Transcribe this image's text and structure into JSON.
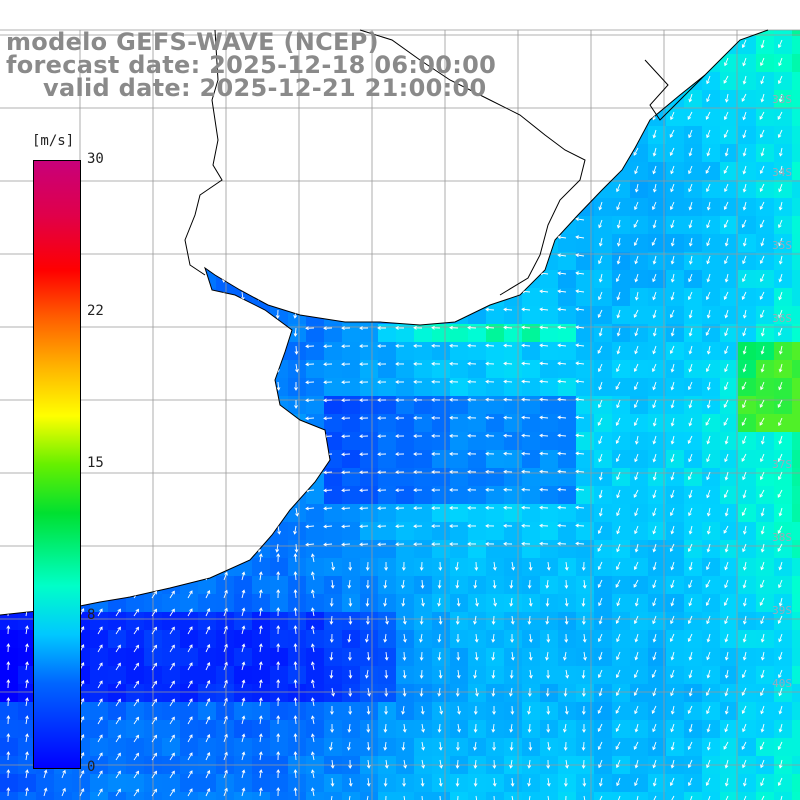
{
  "title": {
    "line1": "modelo GEFS-WAVE (NCEP)",
    "line2": "forecast date: 2025-12-18 06:00:00",
    "line3": "valid date: 2025-12-21 21:00:00"
  },
  "colorbar": {
    "unit": "[m/s]",
    "ticks": [
      "30",
      "22",
      "15",
      "8",
      "0"
    ],
    "colors": [
      "#0000ff",
      "#00c8ff",
      "#00e030",
      "#ffff00",
      "#ff0000",
      "#c8007a"
    ]
  },
  "lat_labels": [
    "33S",
    "34S",
    "35S",
    "36S",
    "37S",
    "38S",
    "39S",
    "40S"
  ],
  "colors": {
    "land": "#ffffff",
    "grid": "#999999",
    "coast": "#000000",
    "arrow": "#ffffff",
    "low_wind": "#0033ff",
    "mid_wind": "#00ccff",
    "high_wind": "#00ee66"
  }
}
